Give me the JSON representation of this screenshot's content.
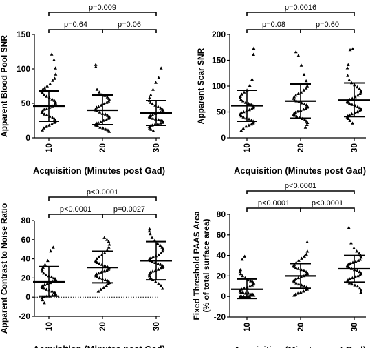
{
  "chart_data": [
    {
      "type": "scatter",
      "ylabel": "Apparent Blood Pool SNR",
      "xlabel": "Acquisition (Minutes post Gad)",
      "categories": [
        "10",
        "20",
        "30"
      ],
      "ylim": [
        0,
        150
      ],
      "yticks": [
        "0",
        "50",
        "100",
        "150"
      ],
      "zero_line": false,
      "summary": [
        {
          "category": "10",
          "mean": 46,
          "upper": 68,
          "lower": 24
        },
        {
          "category": "20",
          "mean": 40,
          "upper": 62,
          "lower": 19
        },
        {
          "category": "30",
          "mean": 36,
          "upper": 54,
          "lower": 18
        }
      ],
      "series": [
        {
          "category": "10",
          "values": [
            121,
            113,
            101,
            92,
            86,
            83,
            78,
            75,
            72,
            70,
            67,
            65,
            62,
            60,
            58,
            56,
            54,
            52,
            50,
            48,
            46,
            44,
            42,
            41,
            39,
            37,
            36,
            34,
            33,
            31,
            29,
            27,
            25,
            23,
            22,
            20,
            18,
            16,
            14,
            11
          ]
        },
        {
          "category": "20",
          "values": [
            106,
            103,
            70,
            66,
            63,
            61,
            59,
            57,
            55,
            53,
            51,
            49,
            47,
            45,
            44,
            42,
            40,
            39,
            37,
            35,
            34,
            32,
            31,
            29,
            28,
            26,
            25,
            23,
            22,
            21,
            19,
            18,
            17,
            15,
            14,
            12,
            11,
            9
          ]
        },
        {
          "category": "30",
          "values": [
            101,
            87,
            80,
            70,
            62,
            58,
            54,
            51,
            49,
            47,
            45,
            43,
            41,
            40,
            38,
            37,
            36,
            35,
            33,
            32,
            31,
            30,
            29,
            28,
            27,
            26,
            25,
            24,
            23,
            22,
            21,
            20,
            19,
            18,
            17,
            16,
            14,
            12,
            10
          ]
        }
      ],
      "comparisons": [
        {
          "label": "p=0.009",
          "from": "10",
          "to": "30"
        },
        {
          "label": "p=0.64",
          "from": "10",
          "to": "20"
        },
        {
          "label": "p=0.06",
          "from": "20",
          "to": "30"
        }
      ]
    },
    {
      "type": "scatter",
      "ylabel": "Apparent Scar SNR",
      "xlabel": "Acquisition (Minutes post Gad)",
      "categories": [
        "10",
        "20",
        "30"
      ],
      "ylim": [
        0,
        200
      ],
      "yticks": [
        "0",
        "50",
        "100",
        "150",
        "200"
      ],
      "zero_line": false,
      "summary": [
        {
          "category": "10",
          "mean": 62,
          "upper": 92,
          "lower": 32
        },
        {
          "category": "20",
          "mean": 71,
          "upper": 104,
          "lower": 38
        },
        {
          "category": "30",
          "mean": 73,
          "upper": 106,
          "lower": 41
        }
      ],
      "series": [
        {
          "category": "10",
          "values": [
            173,
            161,
            113,
            101,
            92,
            88,
            84,
            80,
            77,
            74,
            71,
            68,
            66,
            64,
            62,
            60,
            58,
            56,
            54,
            52,
            50,
            48,
            46,
            44,
            42,
            40,
            38,
            36,
            34,
            32,
            30,
            28,
            26,
            24,
            22,
            18,
            14
          ]
        },
        {
          "category": "20",
          "values": [
            166,
            159,
            140,
            122,
            110,
            104,
            100,
            96,
            92,
            88,
            85,
            82,
            79,
            76,
            73,
            71,
            69,
            67,
            65,
            63,
            61,
            59,
            57,
            55,
            53,
            51,
            49,
            47,
            45,
            43,
            41,
            39,
            37,
            35,
            32,
            29,
            25,
            20
          ]
        },
        {
          "category": "30",
          "values": [
            172,
            170,
            141,
            135,
            120,
            112,
            106,
            102,
            98,
            95,
            91,
            88,
            85,
            82,
            79,
            76,
            74,
            72,
            70,
            68,
            66,
            64,
            62,
            60,
            58,
            56,
            54,
            52,
            50,
            48,
            46,
            44,
            42,
            40,
            37,
            33,
            28
          ]
        }
      ],
      "comparisons": [
        {
          "label": "p=0.0016",
          "from": "10",
          "to": "30"
        },
        {
          "label": "p=0.08",
          "from": "10",
          "to": "20"
        },
        {
          "label": "p=0.60",
          "from": "20",
          "to": "30"
        }
      ]
    },
    {
      "type": "scatter",
      "ylabel": "Apparent Contrast to Noise Ratio",
      "xlabel": "Acquisition (Minutes post Gad)",
      "categories": [
        "10",
        "20",
        "30"
      ],
      "ylim": [
        -20,
        80
      ],
      "yticks": [
        "-20",
        "0",
        "20",
        "40",
        "60",
        "80"
      ],
      "zero_line": true,
      "summary": [
        {
          "category": "10",
          "mean": 16,
          "upper": 32,
          "lower": 1
        },
        {
          "category": "20",
          "mean": 31,
          "upper": 48,
          "lower": 15
        },
        {
          "category": "30",
          "mean": 38,
          "upper": 58,
          "lower": 18
        }
      ],
      "series": [
        {
          "category": "10",
          "values": [
            52,
            48,
            38,
            34,
            31,
            29,
            27,
            25,
            23,
            22,
            21,
            20,
            19,
            18,
            17,
            16,
            15,
            14,
            13,
            12,
            11,
            10,
            9,
            8,
            7,
            6,
            5,
            4,
            3,
            2,
            2,
            1,
            1,
            0,
            0,
            -1,
            -3,
            -6
          ]
        },
        {
          "category": "20",
          "values": [
            62,
            60,
            58,
            55,
            52,
            49,
            46,
            44,
            42,
            40,
            38,
            37,
            36,
            35,
            34,
            33,
            32,
            31,
            30,
            29,
            28,
            27,
            26,
            25,
            24,
            23,
            22,
            21,
            20,
            19,
            18,
            17,
            16,
            15,
            14,
            12,
            10,
            8,
            6
          ]
        },
        {
          "category": "30",
          "values": [
            71,
            69,
            66,
            62,
            59,
            56,
            54,
            52,
            50,
            48,
            46,
            44,
            43,
            42,
            41,
            40,
            39,
            38,
            37,
            36,
            35,
            34,
            33,
            32,
            31,
            30,
            29,
            28,
            27,
            26,
            24,
            22,
            20,
            18,
            16,
            14,
            12,
            9
          ]
        }
      ],
      "comparisons": [
        {
          "label": "p<0.0001",
          "from": "10",
          "to": "30"
        },
        {
          "label": "p<0.0001",
          "from": "10",
          "to": "20"
        },
        {
          "label": "p=0.0027",
          "from": "20",
          "to": "30"
        }
      ]
    },
    {
      "type": "scatter",
      "ylabel": [
        "Fixed Threshold PAAS Area",
        "(% of total surface area)"
      ],
      "xlabel": "Acquisition (Minutes post Gad)",
      "categories": [
        "10",
        "20",
        "30"
      ],
      "ylim": [
        -20,
        80
      ],
      "yticks": [
        "-20",
        "0",
        "20",
        "40",
        "60",
        "80"
      ],
      "zero_line": false,
      "summary": [
        {
          "category": "10",
          "mean": 7,
          "upper": 17,
          "lower": -2
        },
        {
          "category": "20",
          "mean": 20,
          "upper": 32,
          "lower": 8
        },
        {
          "category": "30",
          "mean": 27,
          "upper": 40,
          "lower": 14
        }
      ],
      "series": [
        {
          "category": "10",
          "values": [
            39,
            36,
            26,
            24,
            22,
            20,
            18,
            16,
            15,
            14,
            13,
            12,
            11,
            10,
            9,
            8,
            7,
            6,
            5,
            4,
            4,
            3,
            3,
            2,
            2,
            1,
            1,
            1,
            0,
            0,
            0,
            0,
            0,
            0,
            0,
            0,
            0,
            0
          ]
        },
        {
          "category": "20",
          "values": [
            53,
            44,
            41,
            39,
            37,
            35,
            33,
            31,
            30,
            29,
            28,
            27,
            26,
            25,
            24,
            23,
            22,
            21,
            20,
            19,
            18,
            17,
            16,
            15,
            14,
            13,
            12,
            11,
            10,
            9,
            8,
            7,
            6,
            5,
            4,
            3,
            2,
            1
          ]
        },
        {
          "category": "30",
          "values": [
            67,
            52,
            47,
            44,
            42,
            40,
            38,
            36,
            35,
            34,
            33,
            32,
            31,
            30,
            29,
            28,
            27,
            26,
            25,
            24,
            23,
            22,
            21,
            20,
            19,
            18,
            17,
            16,
            15,
            14,
            13,
            12,
            11,
            10,
            8,
            6,
            4
          ]
        }
      ],
      "comparisons": [
        {
          "label": "p<0.0001",
          "from": "10",
          "to": "30"
        },
        {
          "label": "p<0.0001",
          "from": "10",
          "to": "20"
        },
        {
          "label": "p<0.0001",
          "from": "20",
          "to": "30"
        }
      ]
    }
  ]
}
